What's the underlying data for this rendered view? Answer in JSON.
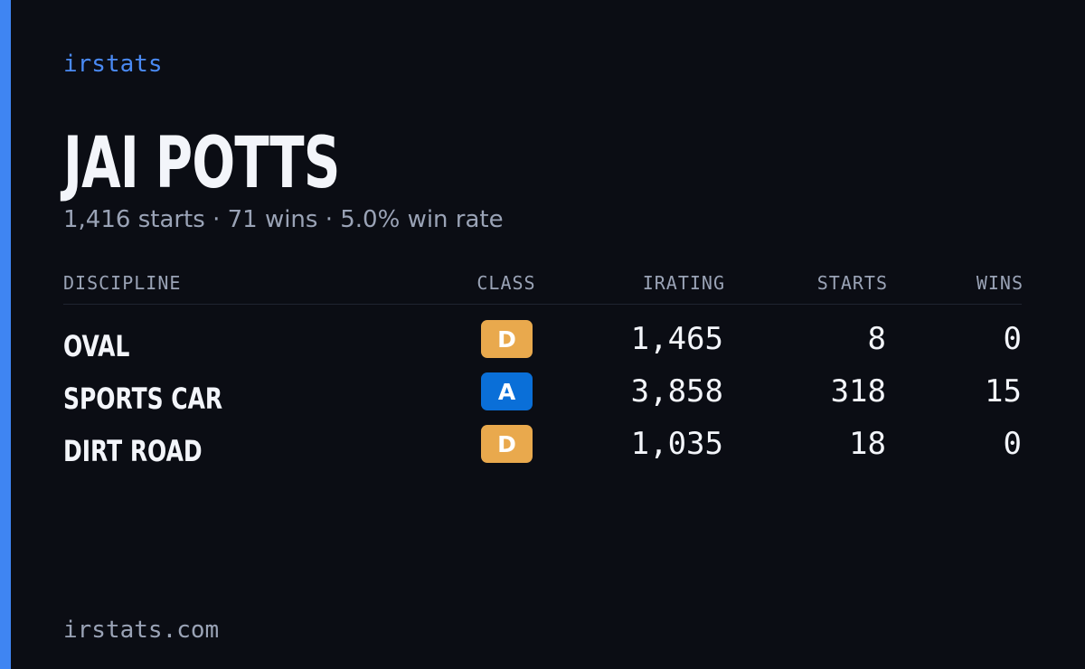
{
  "brand": "irstats",
  "player": {
    "name": "JAI POTTS",
    "summary": "1,416 starts · 71 wins · 5.0% win rate"
  },
  "table": {
    "columns": [
      "DISCIPLINE",
      "CLASS",
      "IRATING",
      "STARTS",
      "WINS"
    ],
    "rows": [
      [
        "OVAL",
        "D",
        "1,465",
        "8",
        "0"
      ],
      [
        "SPORTS CAR",
        "A",
        "3,858",
        "318",
        "15"
      ],
      [
        "DIRT ROAD",
        "D",
        "1,035",
        "18",
        "0"
      ]
    ]
  },
  "class_colors": {
    "D": "#e9a94d",
    "A": "#0a6fd8"
  },
  "footer": "irstats.com"
}
